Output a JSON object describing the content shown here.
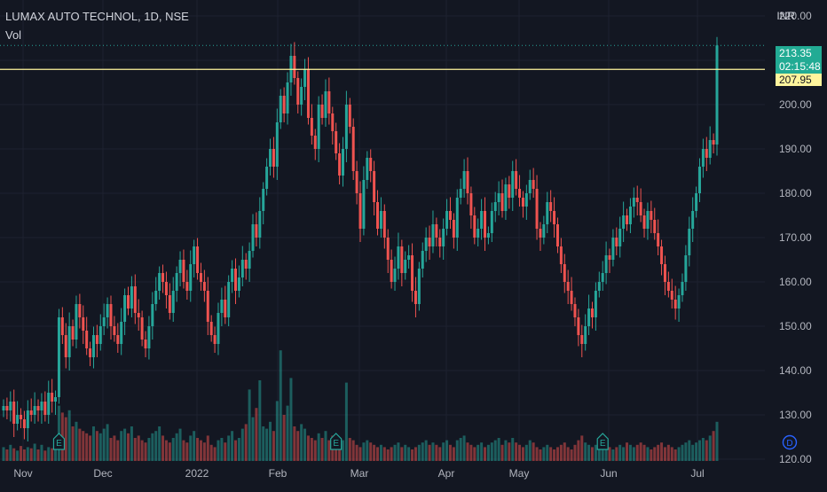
{
  "header": {
    "symbol_title": "LUMAX AUTO TECHNOL, 1D, NSE",
    "volume_label": "Vol",
    "currency": "INR"
  },
  "badges": {
    "last_price": "213.35",
    "countdown": "02:15:48",
    "level_price": "207.95"
  },
  "colors": {
    "background": "#131722",
    "up": "#26a69a",
    "down": "#ef5350",
    "level_line": "#fff59d",
    "earnings_marker": "#26a69a",
    "dividend_marker": "#2962ff"
  },
  "chart_data": {
    "type": "candlestick",
    "title": "LUMAX AUTO TECHNOL, 1D, NSE",
    "ylabel": "INR",
    "ylim": [
      118,
      222
    ],
    "yticks": [
      220,
      210,
      200,
      190,
      180,
      170,
      160,
      150,
      140,
      130,
      120
    ],
    "ytick_labels": [
      "220.00",
      "210.00",
      "200.00",
      "190.00",
      "180.00",
      "170.00",
      "160.00",
      "150.00",
      "140.00",
      "130.00",
      "120.00"
    ],
    "x_tick_labels": [
      "Nov",
      "Dec",
      "2022",
      "Feb",
      "Mar",
      "Apr",
      "May",
      "Jun",
      "Jul"
    ],
    "horizontal_level": 207.95,
    "last_price": 213.35,
    "grid": true,
    "series": [
      {
        "name": "Price",
        "kind": "candlestick",
        "close": [
          132,
          131,
          133,
          128,
          130,
          129,
          127,
          131,
          130,
          132,
          131,
          133,
          130,
          135,
          133,
          134,
          152,
          148,
          143,
          150,
          147,
          155,
          152,
          149,
          145,
          143,
          148,
          146,
          150,
          152,
          155,
          150,
          148,
          146,
          151,
          157,
          154,
          159,
          153,
          152,
          147,
          145,
          150,
          155,
          158,
          162,
          160,
          157,
          153,
          158,
          162,
          165,
          160,
          158,
          164,
          168,
          162,
          160,
          158,
          151,
          148,
          146,
          153,
          156,
          152,
          160,
          163,
          158,
          161,
          165,
          163,
          167,
          173,
          170,
          176,
          181,
          186,
          190,
          186,
          196,
          202,
          198,
          205,
          211,
          206,
          200,
          204,
          208,
          197,
          193,
          190,
          200,
          197,
          203,
          198,
          194,
          189,
          184,
          190,
          200,
          195,
          185,
          180,
          172,
          183,
          188,
          185,
          178,
          172,
          176,
          170,
          165,
          160,
          163,
          168,
          162,
          165,
          166,
          158,
          155,
          163,
          167,
          170,
          168,
          173,
          170,
          168,
          172,
          176,
          174,
          170,
          179,
          181,
          185,
          180,
          175,
          170,
          172,
          176,
          170,
          171,
          176,
          178,
          180,
          176,
          182,
          179,
          185,
          181,
          179,
          177,
          180,
          183,
          181,
          172,
          170,
          173,
          178,
          176,
          173,
          168,
          164,
          160,
          158,
          155,
          152,
          148,
          146,
          150,
          154,
          152,
          158,
          160,
          162,
          166,
          165,
          170,
          168,
          172,
          175,
          173,
          177,
          179,
          178,
          175,
          172,
          176,
          174,
          171,
          168,
          164,
          160,
          158,
          156,
          154,
          157,
          160,
          166,
          172,
          176,
          180,
          186,
          190,
          188,
          192,
          191,
          213.35
        ]
      },
      {
        "name": "Vol",
        "kind": "volume",
        "values": [
          12,
          10,
          14,
          11,
          9,
          13,
          10,
          12,
          11,
          15,
          10,
          14,
          9,
          12,
          11,
          10,
          48,
          42,
          38,
          44,
          30,
          34,
          28,
          26,
          24,
          22,
          30,
          26,
          24,
          28,
          32,
          20,
          22,
          18,
          26,
          28,
          24,
          30,
          20,
          22,
          18,
          16,
          20,
          24,
          26,
          30,
          22,
          18,
          16,
          20,
          24,
          28,
          18,
          16,
          22,
          26,
          20,
          18,
          16,
          22,
          14,
          12,
          18,
          20,
          16,
          22,
          26,
          18,
          20,
          28,
          32,
          62,
          38,
          46,
          70,
          30,
          28,
          34,
          26,
          52,
          96,
          40,
          48,
          72,
          30,
          26,
          32,
          28,
          22,
          20,
          18,
          24,
          20,
          26,
          18,
          22,
          16,
          14,
          18,
          68,
          20,
          18,
          14,
          12,
          16,
          18,
          16,
          14,
          12,
          14,
          12,
          10,
          12,
          14,
          16,
          12,
          14,
          12,
          10,
          12,
          14,
          16,
          18,
          14,
          16,
          14,
          12,
          16,
          18,
          14,
          12,
          18,
          20,
          22,
          16,
          14,
          12,
          14,
          16,
          12,
          14,
          16,
          18,
          20,
          14,
          18,
          16,
          20,
          16,
          14,
          12,
          14,
          18,
          16,
          12,
          10,
          12,
          14,
          12,
          10,
          12,
          14,
          16,
          12,
          10,
          14,
          18,
          22,
          16,
          14,
          12,
          14,
          16,
          12,
          14,
          12,
          10,
          12,
          14,
          12,
          16,
          14,
          12,
          14,
          16,
          14,
          12,
          10,
          12,
          14,
          16,
          12,
          14,
          12,
          10,
          12,
          14,
          16,
          18,
          14,
          16,
          18,
          20,
          18,
          22,
          26,
          34
        ]
      }
    ],
    "annotations": [
      {
        "kind": "earnings",
        "label": "E",
        "x_index": 16
      },
      {
        "kind": "earnings",
        "label": "E",
        "x_index": 96
      },
      {
        "kind": "earnings",
        "label": "E",
        "x_index": 173
      },
      {
        "kind": "dividend",
        "label": "D",
        "x_index": 227
      }
    ]
  }
}
